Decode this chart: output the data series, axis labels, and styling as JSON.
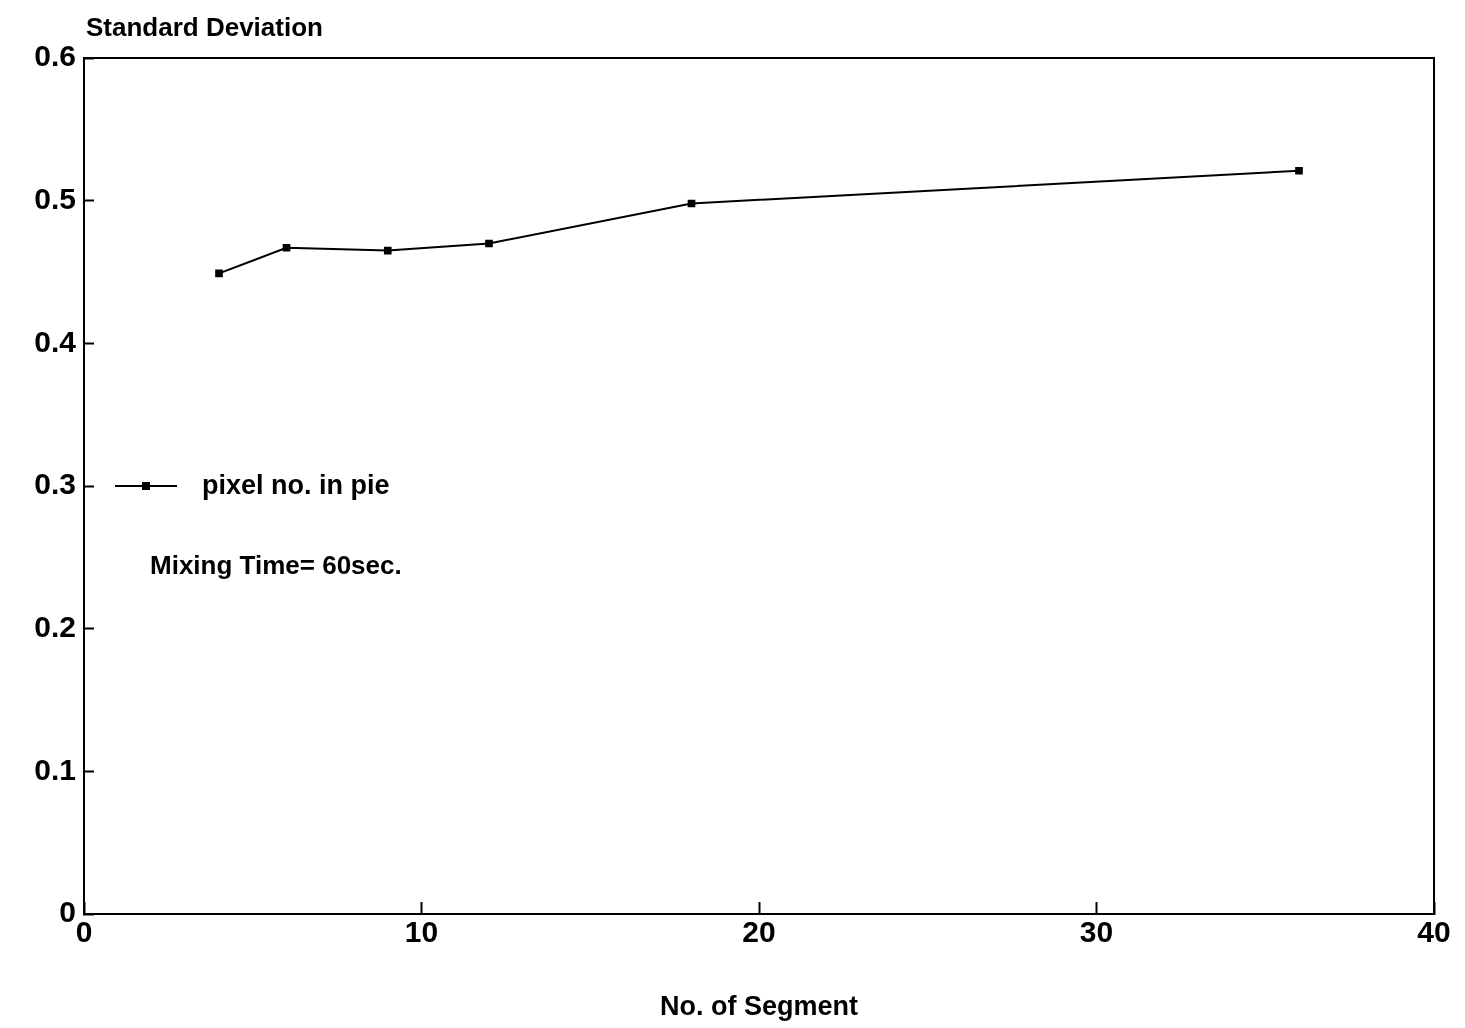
{
  "chart_data": {
    "type": "line",
    "xlabel": "No. of Segment",
    "ylabel": "Standard Deviation",
    "x": [
      4,
      6,
      9,
      12,
      18,
      36
    ],
    "series": [
      {
        "name": "pixel no. in pie",
        "color": "#000000",
        "values": [
          0.449,
          0.467,
          0.465,
          0.47,
          0.498,
          0.521
        ]
      }
    ],
    "xlim": [
      0,
      40
    ],
    "xticks": [
      0,
      10,
      20,
      30,
      40
    ],
    "ylim": [
      0,
      0.6
    ],
    "yticks": [
      0,
      0.1,
      0.2,
      0.3,
      0.4,
      0.5,
      0.6
    ],
    "grid": false,
    "legend": "left",
    "marker": "square",
    "line_style": "solid",
    "annotations": [
      "Mixing Time= 60sec."
    ]
  }
}
